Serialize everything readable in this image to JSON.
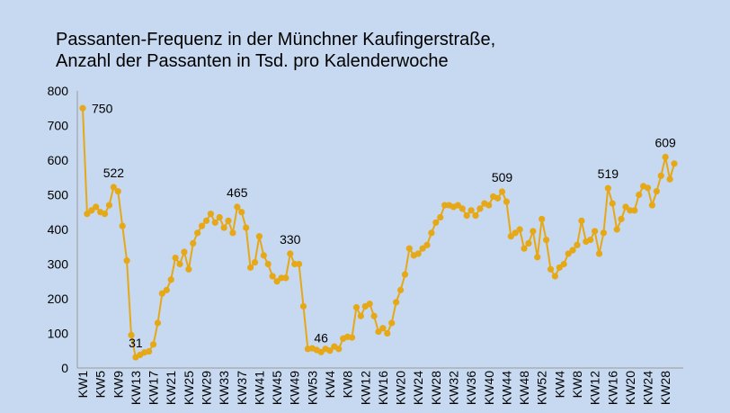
{
  "chart_data": {
    "type": "line",
    "title": [
      "Passanten-Frequenz in der Münchner Kaufingerstraße,",
      "Anzahl der Passanten in Tsd. pro Kalenderwoche"
    ],
    "color": "#e6a817",
    "ylim": [
      0,
      800
    ],
    "yticks": [
      0,
      100,
      200,
      300,
      400,
      500,
      600,
      700,
      800
    ],
    "grid": false,
    "categories": [
      "KW1",
      null,
      null,
      null,
      "KW5",
      null,
      null,
      null,
      "KW9",
      null,
      null,
      null,
      "KW13",
      null,
      null,
      null,
      "KW17",
      null,
      null,
      null,
      "KW21",
      null,
      null,
      null,
      "KW25",
      null,
      null,
      null,
      "KW29",
      null,
      null,
      null,
      "KW33",
      null,
      null,
      null,
      "KW37",
      null,
      null,
      null,
      "KW41",
      null,
      null,
      null,
      "KW45",
      null,
      null,
      null,
      "KW49",
      null,
      null,
      null,
      "KW53",
      null,
      null,
      null,
      "KW4",
      null,
      null,
      null,
      "KW8",
      null,
      null,
      null,
      "KW12",
      null,
      null,
      null,
      "KW16",
      null,
      null,
      null,
      "KW20",
      null,
      null,
      null,
      "KW24",
      null,
      null,
      null,
      "KW28",
      null,
      null,
      null,
      "KW32",
      null,
      null,
      null,
      "KW36",
      null,
      null,
      null,
      "KW40",
      null,
      null,
      null,
      "KW44",
      null,
      null,
      null,
      "KW48",
      null,
      null,
      null,
      "KW52",
      null,
      null,
      null,
      "KW4",
      null,
      null,
      null,
      "KW8",
      null,
      null,
      null,
      "KW12",
      null,
      null,
      null,
      "KW16",
      null,
      null,
      null,
      "KW20",
      null,
      null,
      null,
      "KW24",
      null,
      null,
      null,
      "KW28",
      null,
      null
    ],
    "values": [
      750,
      445,
      455,
      465,
      450,
      445,
      470,
      522,
      510,
      410,
      310,
      95,
      31,
      38,
      45,
      48,
      68,
      130,
      215,
      225,
      255,
      318,
      300,
      335,
      285,
      360,
      390,
      410,
      425,
      445,
      420,
      435,
      405,
      425,
      390,
      465,
      450,
      405,
      290,
      305,
      380,
      325,
      300,
      265,
      250,
      260,
      260,
      330,
      300,
      300,
      178,
      55,
      57,
      52,
      46,
      55,
      50,
      62,
      55,
      85,
      90,
      88,
      175,
      150,
      178,
      185,
      150,
      105,
      115,
      100,
      130,
      190,
      225,
      270,
      345,
      325,
      330,
      345,
      355,
      390,
      420,
      435,
      470,
      470,
      465,
      470,
      460,
      440,
      455,
      440,
      460,
      475,
      470,
      495,
      490,
      509,
      480,
      380,
      390,
      400,
      345,
      360,
      395,
      320,
      430,
      370,
      285,
      265,
      290,
      300,
      330,
      340,
      355,
      425,
      365,
      370,
      395,
      330,
      390,
      519,
      475,
      400,
      430,
      465,
      455,
      455,
      500,
      525,
      520,
      470,
      510,
      555,
      609,
      545,
      590
    ],
    "value_labels": [
      "750",
      null,
      null,
      null,
      null,
      null,
      null,
      "522",
      null,
      null,
      null,
      null,
      "31",
      null,
      null,
      null,
      null,
      null,
      null,
      null,
      null,
      null,
      null,
      null,
      null,
      null,
      null,
      null,
      null,
      null,
      null,
      null,
      null,
      null,
      null,
      "465",
      null,
      null,
      null,
      null,
      null,
      null,
      null,
      null,
      null,
      null,
      null,
      "330",
      null,
      null,
      null,
      null,
      null,
      null,
      "46",
      null,
      null,
      null,
      null,
      null,
      null,
      null,
      null,
      null,
      null,
      null,
      null,
      null,
      null,
      null,
      null,
      null,
      null,
      null,
      null,
      null,
      null,
      null,
      null,
      null,
      null,
      null,
      null,
      null,
      null,
      null,
      null,
      null,
      null,
      null,
      null,
      null,
      null,
      null,
      null,
      "509",
      null,
      null,
      null,
      null,
      null,
      null,
      null,
      null,
      null,
      null,
      null,
      null,
      null,
      null,
      null,
      null,
      null,
      null,
      null,
      null,
      null,
      null,
      null,
      "519",
      null,
      null,
      null,
      null,
      null,
      null,
      null,
      null,
      null,
      null,
      null,
      null,
      "609",
      null,
      null
    ]
  }
}
